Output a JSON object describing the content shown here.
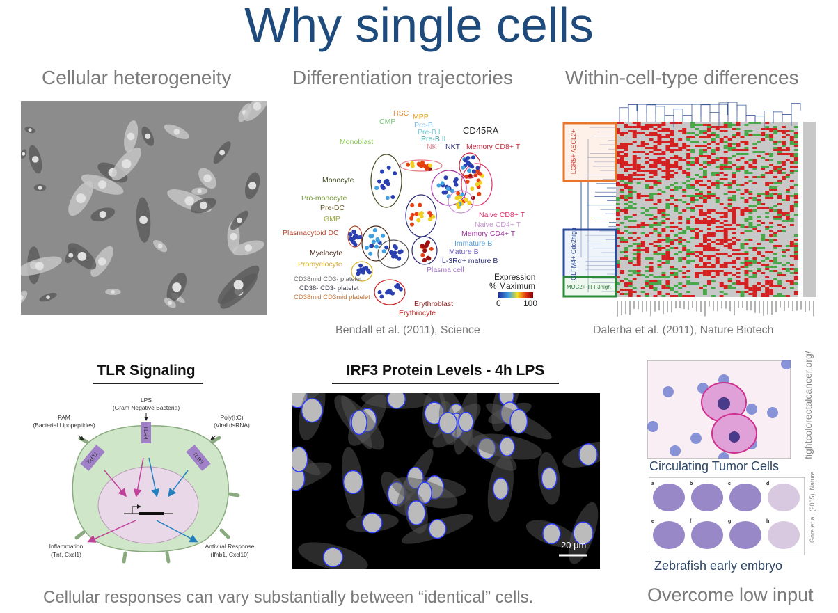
{
  "slide": {
    "title": "Why single cells",
    "sections": [
      "Cellular heterogeneity",
      "Differentiation trajectories",
      "Within-cell-type differences"
    ],
    "citations": {
      "bendall": "Bendall et al. (2011), Science",
      "dalerba": "Dalerba et al. (2011), Nature Biotech"
    },
    "bottom_text": "Cellular responses can vary substantially between “identical” cells.",
    "bottom_right": "Overcome low input"
  },
  "trajectory": {
    "marker": "CD45RA",
    "labels": [
      {
        "t": "HSC",
        "c": "#e8892e"
      },
      {
        "t": "MPP",
        "c": "#e0a020"
      },
      {
        "t": "CMP",
        "c": "#7cc67c"
      },
      {
        "t": "Pro-B",
        "c": "#7fb8e0"
      },
      {
        "t": "Pre-B I",
        "c": "#70c8d8"
      },
      {
        "t": "Pre-B II",
        "c": "#3a9a9a"
      },
      {
        "t": "Monoblast",
        "c": "#8cc850"
      },
      {
        "t": "NK",
        "c": "#e07a8a"
      },
      {
        "t": "NKT",
        "c": "#2a2a70"
      },
      {
        "t": "Memory CD8+ T",
        "c": "#c8283c"
      },
      {
        "t": "Monocyte",
        "c": "#3e4a20"
      },
      {
        "t": "Pro-monocyte",
        "c": "#7a9a3a"
      },
      {
        "t": "Pre-DC",
        "c": "#6a5a2a"
      },
      {
        "t": "GMP",
        "c": "#9aaa3a"
      },
      {
        "t": "Plasmacytoid DC",
        "c": "#b8442a"
      },
      {
        "t": "Myelocyte",
        "c": "#4a2a1a"
      },
      {
        "t": "Promyelocyte",
        "c": "#d8b020"
      },
      {
        "t": "CD38mid CD3- platelet",
        "c": "#6a6a6a"
      },
      {
        "t": "CD38- CD3- platelet",
        "c": "#3a3a4a"
      },
      {
        "t": "CD38mid CD3mid platelet",
        "c": "#c0743a"
      },
      {
        "t": "Erythroblast",
        "c": "#8a1a1a"
      },
      {
        "t": "Erythrocyte",
        "c": "#c82020"
      },
      {
        "t": "Naive CD8+ T",
        "c": "#e0306a"
      },
      {
        "t": "Naive CD4+ T",
        "c": "#c890d0"
      },
      {
        "t": "Memory CD4+ T",
        "c": "#a030a0"
      },
      {
        "t": "Immature B",
        "c": "#5aa0d8"
      },
      {
        "t": "Mature B",
        "c": "#6a5ab8"
      },
      {
        "t": "IL-3Rα+ mature B",
        "c": "#2a2a78"
      },
      {
        "t": "Plasma cell",
        "c": "#a070c8"
      }
    ],
    "legend": {
      "title1": "Expression",
      "title2": "% Maximum",
      "min": "0",
      "max": "100"
    }
  },
  "heatmap": {
    "groups": [
      "LGR5+ ASCL2+",
      "OLFM4+ Cdc2high",
      "MUC2+ TFF3high"
    ],
    "group_colors": [
      "#e8772e",
      "#2a4a9a",
      "#2a8a3a"
    ]
  },
  "tlr": {
    "title": "TLR Signaling",
    "lps": "LPS",
    "lps_sub": "(Gram Negative Bacteria)",
    "pam": "PAM",
    "pam_sub": "(Bacterial Lipopeptides)",
    "poly": "Poly(I:C)",
    "poly_sub": "(Viral dsRNA)",
    "receptors": [
      "TLR2",
      "TLR4",
      "TLR3"
    ],
    "out_left": "Inflammation",
    "out_left_sub": "(Tnf, Cxcl1)",
    "out_right": "Antiviral Response",
    "out_right_sub": "(Ifnb1, Cxcl10)"
  },
  "irf3": {
    "title": "IRF3 Protein Levels - 4h LPS",
    "scale": "20 µm"
  },
  "ctc": {
    "caption": "Circulating Tumor Cells",
    "credit": "fightcolorectalcancer.org/"
  },
  "zebrafish": {
    "caption": "Zebrafish early embryo",
    "credit": "Gore et al. (2005), Nature",
    "panels": [
      "a",
      "b",
      "c",
      "d",
      "e",
      "f",
      "g",
      "h"
    ]
  }
}
